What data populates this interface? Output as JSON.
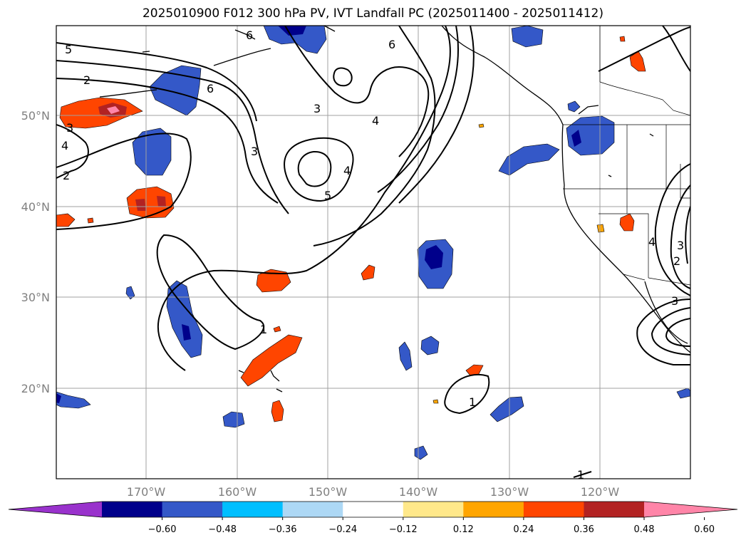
{
  "title": "2025010900 F012 300 hPa PV, IVT Landfall PC (2025011400 - 2025011412)",
  "map": {
    "lon_range": [
      -180,
      -110
    ],
    "lat_range": [
      10,
      60
    ],
    "lat_labels": [
      "50°N",
      "40°N",
      "30°N",
      "20°N"
    ],
    "lat_values": [
      50,
      40,
      30,
      20
    ],
    "lon_labels": [
      "170°W",
      "160°W",
      "150°W",
      "140°W",
      "130°W",
      "120°W"
    ],
    "lon_values": [
      -170,
      -160,
      -150,
      -140,
      -130,
      -120
    ],
    "contour_labels": [
      "5",
      "2",
      "3",
      "4",
      "2",
      "6",
      "6",
      "3",
      "3",
      "4",
      "6",
      "5",
      "4",
      "1",
      "1",
      "4",
      "3",
      "2",
      "3",
      "1"
    ]
  },
  "colorbar": {
    "ticks": [
      "−0.60",
      "−0.48",
      "−0.36",
      "−0.24",
      "−0.12",
      "0.12",
      "0.24",
      "0.36",
      "0.48",
      "0.60"
    ],
    "colors": [
      "#9932cc",
      "#00008b",
      "#3458c8",
      "#00bfff",
      "#add8f5",
      "#ffffff",
      "#ffe88a",
      "#ffa500",
      "#ff4500",
      "#b22222",
      "#ff85a8"
    ]
  }
}
